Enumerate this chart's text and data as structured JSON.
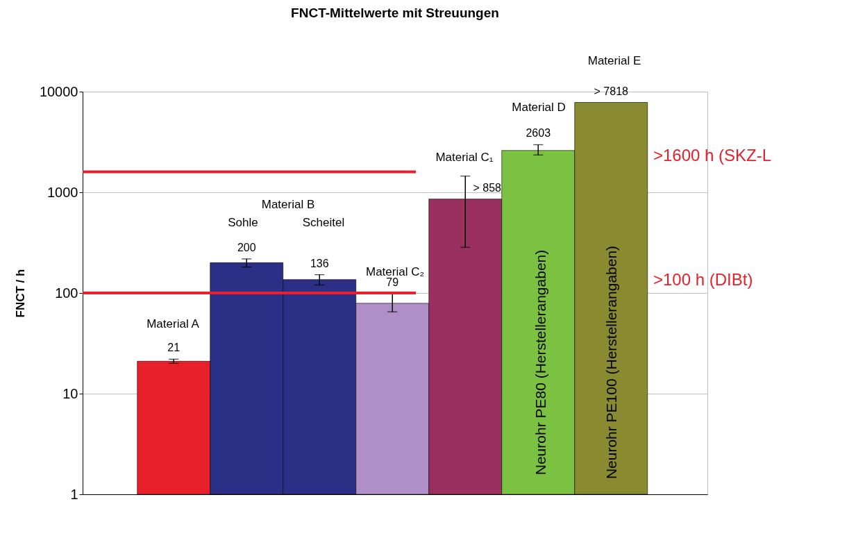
{
  "chart_data": {
    "type": "bar",
    "title": "FNCT-Mittelwerte mit Streuungen",
    "ylabel": "FNCT / h",
    "categories": [
      null,
      null,
      null,
      null,
      null,
      null,
      null
    ],
    "values": [
      21,
      200,
      136,
      79,
      858,
      2603,
      7818
    ],
    "colors": [
      "#e8202a",
      "#2b2f85",
      "#2b2f85",
      "#b08fc8",
      "#9a3060",
      "#7cc242",
      "#8a8a30"
    ],
    "errors": [
      [
        20,
        22
      ],
      [
        181,
        218
      ],
      [
        120,
        152
      ],
      [
        65,
        98
      ],
      [
        284,
        1450
      ],
      [
        2350,
        2970
      ],
      null
    ],
    "value_labels": [
      "21",
      "200",
      "136",
      "79",
      "> 858",
      "2603",
      "> 7818"
    ],
    "ylim": [
      1,
      10000
    ],
    "yticks": [
      1,
      10,
      100,
      1000,
      10000
    ],
    "log": true,
    "grid": "y",
    "ref_lines": [
      {
        "axis": "y",
        "value": 1600,
        "label": ">1600 h (SKZ-L",
        "color": "#e8202a"
      },
      {
        "axis": "y",
        "value": 100,
        "label": ">100 h (DIBt)",
        "color": "#e8202a"
      }
    ],
    "annotations": [
      "Material A",
      "Material B",
      "Sohle",
      "Scheitel",
      "Material C₂",
      "Material C₁",
      "Material D",
      "Material E",
      "Neurohr PE80 (Herstellerangaben)",
      "Neurohr PE100 (Herstellerangaben)"
    ]
  }
}
